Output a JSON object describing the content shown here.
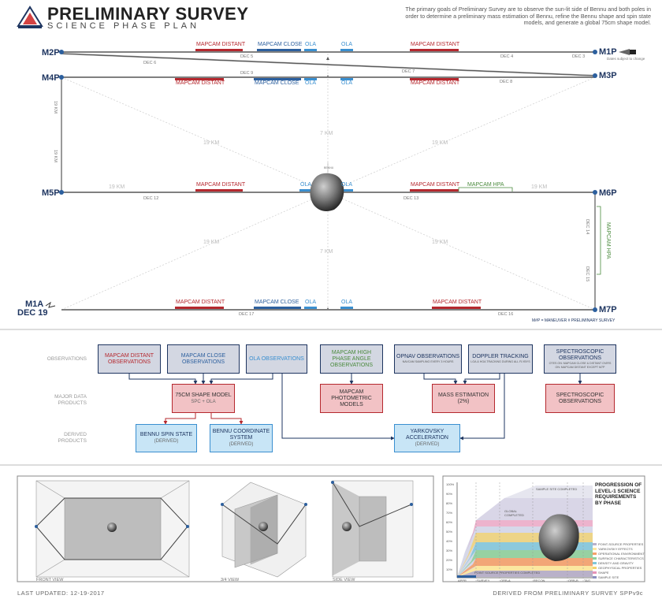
{
  "header": {
    "title": "PRELIMINARY SURVEY",
    "subtitle": "SCIENCE PHASE PLAN",
    "description": "The primary goals of Preliminary Survey are to observe the sun-lit side of Bennu and both poles in order to determine a preliminary mass estimation of Bennu, refine the Bennu shape and spin state models, and generate a global 75cm shape model."
  },
  "maneuvers": {
    "m1p": "M1P",
    "m2p": "M2P",
    "m3p": "M3P",
    "m4p": "M4P",
    "m5p": "M5P",
    "m6p": "M6P",
    "m7p": "M7P",
    "m1a": "M1A",
    "m1a_date": "DEC 19"
  },
  "dates": {
    "dec3": "DEC 3",
    "dec4": "DEC 4",
    "dec5": "DEC 5",
    "dec6": "DEC 6",
    "dec7": "DEC 7",
    "dec8": "DEC 8",
    "dec9": "DEC 9",
    "dec12": "DEC 12",
    "dec13": "DEC 13",
    "dec14": "DEC 14",
    "dec15": "DEC 15",
    "dec16": "DEC 16",
    "dec17": "DEC 17"
  },
  "obs_labels": {
    "mapcam_distant": "MAPCAM DISTANT",
    "mapcam_close": "MAPCAM CLOSE",
    "ola": "OLA",
    "mapcam_hpa": "MAPCAM HPA"
  },
  "distances": {
    "d19": "19 KM",
    "d7": "7 KM"
  },
  "notes": {
    "dates_change": "Dates subject to change",
    "legend": "M#P = MANEUVER # PRELIMINARY SURVEY",
    "bennu": "BENNU"
  },
  "flow": {
    "row_observations": "OBSERVATIONS",
    "row_products": "MAJOR DATA PRODUCTS",
    "row_derived": "DERIVED PRODUCTS",
    "obs_mapcam_distant": "MAPCAM DISTANT OBSERVATIONS",
    "obs_mapcam_close": "MAPCAM CLOSE OBSERVATIONS",
    "obs_ola": "OLA OBSERVATIONS",
    "obs_mapcam_hpa": "MAPCAM HIGH PHASE ANGLE OBSERVATIONS",
    "obs_opnav": "OPNAV OBSERVATIONS",
    "obs_opnav_note": "NAVCAM SAMPLING EVERY 3 HOURS",
    "obs_doppler": "DOPPLER TRACKING",
    "obs_doppler_note": "LGA & HGA TRACKING DURING ALL FLYBYS",
    "obs_spectro": "SPECTROSCOPIC OBSERVATIONS",
    "obs_spectro_note": "OTES ON: MAPCAM CLOSE & DISTANT OVIRS ON: MAPCAM DISTANT EXCEPT M7P",
    "prod_shape": "75CM SHAPE MODEL",
    "prod_shape_sub": "SPC + OLA",
    "prod_photometric": "MAPCAM PHOTOMETRIC MODELS",
    "prod_mass": "MASS ESTIMATION (2%)",
    "prod_spectro": "SPECTROSCOPIC OBSERVATIONS",
    "der_spin": "BENNU SPIN STATE",
    "der_spin_sub": "(DERIVED)",
    "der_coord": "BENNU COORDINATE SYSTEM",
    "der_coord_sub": "(DERIVED)",
    "der_yark": "YARKOVSKY ACCELERATION",
    "der_yark_sub": "(DERIVED)"
  },
  "views": {
    "front": "FRONT VIEW",
    "three_quarter": "3/4 VIEW",
    "side": "SIDE VIEW"
  },
  "progress": {
    "title": "PROGRESSION OF LEVEL-1 SCIENCE REQUIREMENTS BY PHASE",
    "y_ticks": [
      "100%",
      "90%",
      "80%",
      "70%",
      "60%",
      "50%",
      "40%",
      "30%",
      "20%",
      "10%"
    ],
    "phases": [
      "APPR",
      "SURVEY",
      "ORB-A",
      "RECON",
      "ORB-B",
      "TAG"
    ],
    "sample_site": "SAMPLE SITE COMPLETED",
    "global_completed": "GLOBAL COMPLETED",
    "point_source": "POINT SOURCE PROPERTIES COMPLETED",
    "legend": [
      {
        "label": "POINT-SOURCE PROPERTIES",
        "color": "#b9b1c9"
      },
      {
        "label": "YARKOVSKY EFFECTS",
        "color": "#fbe7a0"
      },
      {
        "label": "OPERATIONAL ENVIRONMENT",
        "color": "#f5a16a"
      },
      {
        "label": "SURFACE CHARACTERISTICS",
        "color": "#90d09a"
      },
      {
        "label": "DENSITY AND GRAVITY",
        "color": "#7fc7d9"
      },
      {
        "label": "GEOPHYSICAL PROPERTIES",
        "color": "#f3d36e"
      },
      {
        "label": "SHAPE",
        "color": "#e693b8"
      },
      {
        "label": "SAMPLE SITE",
        "color": "#8a8fc0"
      }
    ]
  },
  "footer": {
    "updated": "LAST UPDATED: 12-19-2017",
    "derived": "DERIVED FROM PRELIMINARY SURVEY SPPv9c"
  },
  "colors": {
    "red": "#b5282e",
    "blue": "#2c5f9e",
    "lightblue": "#3a8fd0",
    "green": "#4a8a3c",
    "navy": "#1e3560",
    "redfill": "#f2c9cc",
    "bluefill": "#cde3f3",
    "greenfill": "#d6eccc",
    "grayfill": "#d6d9e2"
  }
}
